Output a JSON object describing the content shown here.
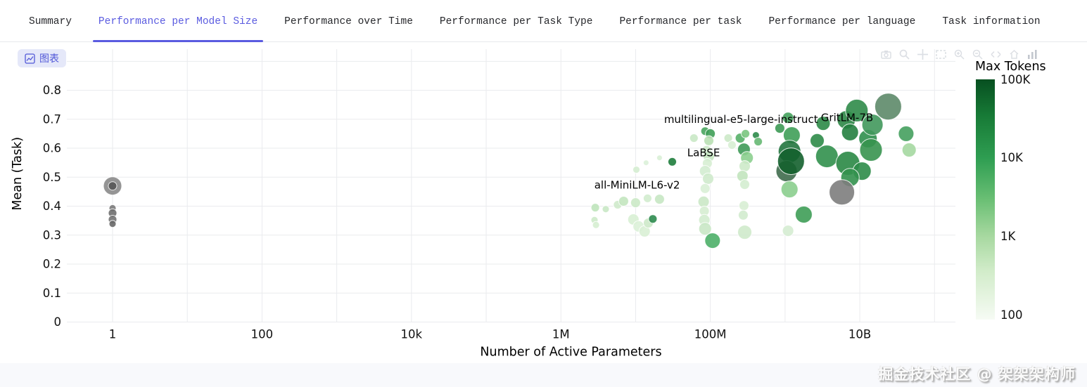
{
  "tabs": [
    {
      "label": "Summary",
      "active": false
    },
    {
      "label": "Performance per Model Size",
      "active": true
    },
    {
      "label": "Performance over Time",
      "active": false
    },
    {
      "label": "Performance per Task Type",
      "active": false
    },
    {
      "label": "Performance per task",
      "active": false
    },
    {
      "label": "Performance per language",
      "active": false
    },
    {
      "label": "Task information",
      "active": false
    }
  ],
  "chart_button": {
    "label": "图表"
  },
  "modebar": {
    "icons": [
      "camera-icon",
      "zoom-icon",
      "pan-icon",
      "box-select-icon",
      "zoom-in-icon",
      "zoom-out-icon",
      "autoscale-icon",
      "reset-axes-icon",
      "plotly-logo-icon"
    ]
  },
  "watermark": {
    "text": "掘金技术社区 @ 架架架构师"
  },
  "chart_data": {
    "type": "scatter",
    "title": "",
    "xlabel": "Number of Active Parameters",
    "ylabel": "Mean (Task)",
    "x_scale": "log",
    "grid": true,
    "legend_position": "right",
    "x_range_log": [
      -0.612,
      11.28
    ],
    "y_range": [
      0,
      0.942
    ],
    "x_ticks": [
      {
        "lg": 0,
        "label": "1"
      },
      {
        "lg": 1,
        "label": ""
      },
      {
        "lg": 2,
        "label": "100"
      },
      {
        "lg": 3,
        "label": ""
      },
      {
        "lg": 4,
        "label": "10k"
      },
      {
        "lg": 5,
        "label": ""
      },
      {
        "lg": 6,
        "label": "1M"
      },
      {
        "lg": 7,
        "label": ""
      },
      {
        "lg": 8,
        "label": "100M"
      },
      {
        "lg": 9,
        "label": ""
      },
      {
        "lg": 10,
        "label": "10B"
      },
      {
        "lg": 11,
        "label": ""
      }
    ],
    "y_ticks": [
      {
        "v": 0.0,
        "label": "0"
      },
      {
        "v": 0.1,
        "label": "0.1"
      },
      {
        "v": 0.2,
        "label": "0.2"
      },
      {
        "v": 0.3,
        "label": "0.3"
      },
      {
        "v": 0.4,
        "label": "0.4"
      },
      {
        "v": 0.5,
        "label": "0.5"
      },
      {
        "v": 0.6,
        "label": "0.6"
      },
      {
        "v": 0.7,
        "label": "0.7"
      },
      {
        "v": 0.8,
        "label": "0.8"
      },
      {
        "v": 0.9,
        "label": ""
      }
    ],
    "colorbar": {
      "title": "Max Tokens",
      "ticks": [
        {
          "label": "100K",
          "t": 0.0
        },
        {
          "label": "10K",
          "t": 0.325
        },
        {
          "label": "1K",
          "t": 0.652
        },
        {
          "label": "100",
          "t": 0.979
        }
      ],
      "gradient": [
        [
          "0",
          "#074f20"
        ],
        [
          "0.15",
          "#177a36"
        ],
        [
          "0.33",
          "#2f9e52"
        ],
        [
          "0.5",
          "#6abf74"
        ],
        [
          "0.65",
          "#a6d89f"
        ],
        [
          "0.8",
          "#d2ecca"
        ],
        [
          "1",
          "#f6fbf4"
        ]
      ]
    },
    "point_format": [
      "log10_active_params",
      "mean_task",
      "radius_px",
      "color"
    ],
    "points": [
      [
        0.0,
        0.47,
        13,
        "#8a8a8a"
      ],
      [
        0.0,
        0.393,
        5,
        "#7a7a7a"
      ],
      [
        0.0,
        0.376,
        6,
        "#6f6f6f"
      ],
      [
        0.0,
        0.354,
        6,
        "#737373"
      ],
      [
        0.0,
        0.339,
        5,
        "#686868"
      ],
      [
        0.0,
        0.47,
        6,
        "#565656"
      ],
      [
        6.46,
        0.395,
        6,
        "#bfe4bb"
      ],
      [
        6.45,
        0.352,
        5,
        "#cdeac9"
      ],
      [
        6.47,
        0.335,
        5,
        "#d6eed2"
      ],
      [
        6.6,
        0.39,
        5,
        "#c9e8c5"
      ],
      [
        6.76,
        0.405,
        6,
        "#cfeacb"
      ],
      [
        6.84,
        0.417,
        7,
        "#c3e5bf"
      ],
      [
        7.0,
        0.412,
        7,
        "#cbe9c7"
      ],
      [
        7.16,
        0.427,
        6,
        "#d2ecce"
      ],
      [
        7.32,
        0.424,
        7,
        "#c7e7c3"
      ],
      [
        6.97,
        0.354,
        8,
        "#d8efd4"
      ],
      [
        7.04,
        0.33,
        8,
        "#dcf1d8"
      ],
      [
        7.12,
        0.313,
        8,
        "#d9efd5"
      ],
      [
        7.17,
        0.342,
        7,
        "#cde9c9"
      ],
      [
        7.23,
        0.356,
        6,
        "#2e8b4f"
      ],
      [
        7.32,
        0.567,
        4,
        "#d9efd6"
      ],
      [
        7.01,
        0.526,
        5,
        "#d5edd1"
      ],
      [
        7.14,
        0.55,
        4,
        "#dcf1d9"
      ],
      [
        7.49,
        0.553,
        6,
        "#1e7d3c"
      ],
      [
        7.78,
        0.635,
        6,
        "#c9e8c5"
      ],
      [
        7.93,
        0.659,
        6,
        "#49a55e"
      ],
      [
        8.0,
        0.65,
        7,
        "#3f9e56"
      ],
      [
        7.98,
        0.626,
        7,
        "#b9e0b4"
      ],
      [
        7.95,
        0.592,
        7,
        "#cfeacb"
      ],
      [
        7.98,
        0.572,
        8,
        "#c5e6c1"
      ],
      [
        7.96,
        0.548,
        7,
        "#d7eed3"
      ],
      [
        7.93,
        0.521,
        8,
        "#d3ecd0"
      ],
      [
        7.97,
        0.495,
        8,
        "#cfeacc"
      ],
      [
        7.93,
        0.461,
        7,
        "#d9efd6"
      ],
      [
        7.91,
        0.415,
        8,
        "#cbe8c7"
      ],
      [
        7.92,
        0.383,
        7,
        "#d6edd2"
      ],
      [
        7.92,
        0.352,
        8,
        "#d3eccf"
      ],
      [
        7.93,
        0.322,
        9,
        "#c9e7c5"
      ],
      [
        8.03,
        0.281,
        11,
        "#4caf68"
      ],
      [
        8.24,
        0.635,
        6,
        "#cce9c8"
      ],
      [
        8.29,
        0.611,
        6,
        "#d7eed3"
      ],
      [
        8.4,
        0.635,
        7,
        "#57b068"
      ],
      [
        8.47,
        0.65,
        6,
        "#7ac580"
      ],
      [
        8.45,
        0.596,
        9,
        "#3f9a58"
      ],
      [
        8.49,
        0.567,
        9,
        "#8ccf8f"
      ],
      [
        8.46,
        0.538,
        8,
        "#cdeac9"
      ],
      [
        8.43,
        0.504,
        8,
        "#c2e4be"
      ],
      [
        8.46,
        0.475,
        7,
        "#d4edd0"
      ],
      [
        8.45,
        0.402,
        7,
        "#d8eed4"
      ],
      [
        8.44,
        0.369,
        7,
        "#d2ebce"
      ],
      [
        8.46,
        0.31,
        10,
        "#cfeacb"
      ],
      [
        8.61,
        0.645,
        5,
        "#2e8b4a"
      ],
      [
        8.64,
        0.623,
        6,
        "#66b873"
      ],
      [
        9.04,
        0.705,
        8,
        "#44a15c"
      ],
      [
        8.93,
        0.669,
        7,
        "#3c9954"
      ],
      [
        9.09,
        0.645,
        12,
        "#3f9e58"
      ],
      [
        9.06,
        0.589,
        16,
        "#23763f"
      ],
      [
        9.02,
        0.521,
        15,
        "#3f6b4d"
      ],
      [
        9.08,
        0.555,
        19,
        "#14602e"
      ],
      [
        9.06,
        0.458,
        12,
        "#8bce8e"
      ],
      [
        9.04,
        0.315,
        8,
        "#d5ecd1"
      ],
      [
        9.25,
        0.371,
        12,
        "#3e9d57"
      ],
      [
        9.43,
        0.626,
        10,
        "#2d8b48"
      ],
      [
        9.51,
        0.686,
        10,
        "#2c8a47"
      ],
      [
        9.82,
        0.698,
        13,
        "#2c8746"
      ],
      [
        9.96,
        0.73,
        16,
        "#2f8b49"
      ],
      [
        9.87,
        0.655,
        12,
        "#23803f"
      ],
      [
        10.11,
        0.633,
        13,
        "#2f8f4c"
      ],
      [
        10.15,
        0.594,
        16,
        "#37944f"
      ],
      [
        10.17,
        0.681,
        15,
        "#41985c"
      ],
      [
        10.38,
        0.744,
        19,
        "#5d8a69"
      ],
      [
        9.56,
        0.572,
        16,
        "#31904c"
      ],
      [
        9.84,
        0.548,
        17,
        "#2a8845"
      ],
      [
        10.03,
        0.521,
        13,
        "#2e8c49"
      ],
      [
        9.87,
        0.499,
        13,
        "#33914e"
      ],
      [
        9.76,
        0.448,
        18,
        "#7d7d7d"
      ],
      [
        10.62,
        0.65,
        11,
        "#45a05e"
      ],
      [
        10.66,
        0.594,
        10,
        "#a5d8a1"
      ]
    ],
    "annotations": [
      {
        "text": "multilingual-e5-large-instruct",
        "p": 8.41,
        "m": 0.688
      },
      {
        "text": "GritLM-7B",
        "p": 9.83,
        "m": 0.693
      },
      {
        "text": "LaBSE",
        "p": 7.91,
        "m": 0.572
      },
      {
        "text": "all-MiniLM-L6-v2",
        "p": 7.02,
        "m": 0.461
      }
    ]
  }
}
